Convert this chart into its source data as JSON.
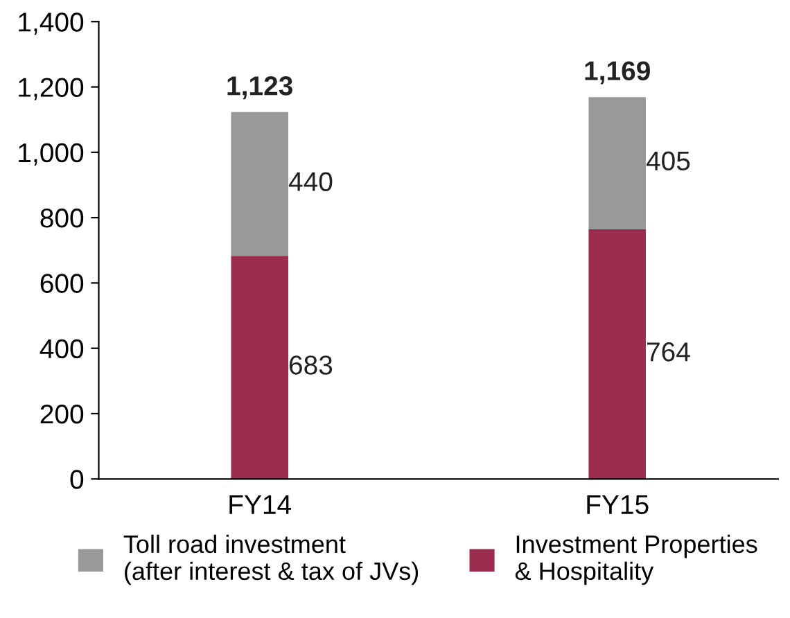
{
  "chart_data": {
    "type": "bar",
    "stacked": true,
    "categories": [
      "FY14",
      "FY15"
    ],
    "series": [
      {
        "name": "Investment Properties\n& Hospitality",
        "color": "#9c2c4e",
        "values": [
          683,
          764
        ],
        "value_labels": [
          "683",
          "764"
        ]
      },
      {
        "name": "Toll road investment\n(after interest & tax of JVs)",
        "color": "#999999",
        "values": [
          440,
          405
        ],
        "value_labels": [
          "440",
          "405"
        ]
      }
    ],
    "totals": [
      "1,123",
      "1,169"
    ],
    "ylim": [
      0,
      1400
    ],
    "yticks": [
      0,
      200,
      400,
      600,
      800,
      {
        "value": 1000,
        "label": "1,000"
      },
      {
        "value": 1200,
        "label": "1,200"
      },
      {
        "value": 1400,
        "label": "1,400"
      }
    ],
    "grid": false,
    "legend": "bottom"
  }
}
